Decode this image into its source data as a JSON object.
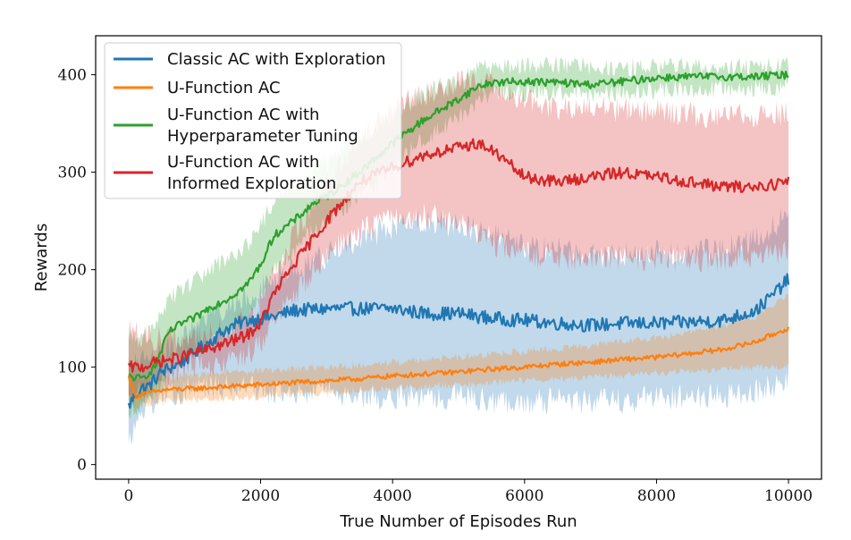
{
  "chart_data": {
    "type": "line",
    "title": "",
    "xlabel": "True Number of Episodes Run",
    "ylabel": "Rewards",
    "xlim": [
      -500,
      10500
    ],
    "ylim": [
      -15,
      440
    ],
    "xticks": [
      0,
      2000,
      4000,
      6000,
      8000,
      10000
    ],
    "yticks": [
      0,
      100,
      200,
      300,
      400
    ],
    "grid": false,
    "legend_position": "top-left",
    "series": [
      {
        "name": "Classic AC with Exploration",
        "color": "#1f77b4",
        "x": [
          0,
          100,
          200,
          300,
          500,
          800,
          1000,
          1200,
          1500,
          1800,
          2000,
          2200,
          2500,
          3000,
          3500,
          4000,
          4500,
          5000,
          5500,
          6000,
          6500,
          7000,
          7500,
          8000,
          8500,
          9000,
          9500,
          9700,
          10000
        ],
        "y": [
          60,
          72,
          78,
          80,
          95,
          105,
          115,
          125,
          140,
          148,
          150,
          152,
          158,
          160,
          160,
          160,
          155,
          155,
          150,
          148,
          145,
          143,
          145,
          145,
          146,
          148,
          158,
          170,
          190
        ],
        "band_lower": [
          20,
          40,
          55,
          60,
          70,
          75,
          80,
          80,
          78,
          78,
          75,
          75,
          75,
          75,
          70,
          70,
          70,
          70,
          65,
          65,
          65,
          65,
          65,
          70,
          70,
          70,
          75,
          80,
          85
        ],
        "band_upper": [
          100,
          105,
          105,
          105,
          115,
          125,
          140,
          150,
          165,
          175,
          180,
          190,
          200,
          215,
          230,
          245,
          250,
          245,
          235,
          225,
          220,
          215,
          215,
          218,
          218,
          220,
          230,
          240,
          260
        ]
      },
      {
        "name": "U-Function AC",
        "color": "#ff7f0e",
        "x": [
          0,
          100,
          200,
          400,
          600,
          1000,
          1500,
          2000,
          2500,
          3000,
          3500,
          4000,
          4500,
          5000,
          5500,
          6000,
          6500,
          7000,
          7500,
          8000,
          8500,
          9000,
          9500,
          10000
        ],
        "y": [
          90,
          70,
          72,
          75,
          77,
          78,
          80,
          82,
          84,
          86,
          88,
          91,
          93,
          95,
          98,
          100,
          103,
          105,
          108,
          110,
          114,
          118,
          126,
          140
        ],
        "band_lower": [
          70,
          55,
          60,
          63,
          65,
          66,
          68,
          70,
          72,
          74,
          76,
          78,
          80,
          82,
          84,
          86,
          88,
          90,
          92,
          94,
          96,
          98,
          100,
          100
        ],
        "band_upper": [
          110,
          90,
          88,
          88,
          90,
          92,
          94,
          96,
          98,
          100,
          102,
          105,
          107,
          110,
          113,
          116,
          119,
          122,
          126,
          130,
          136,
          142,
          152,
          175
        ]
      },
      {
        "name": "U-Function AC with Hyperparameter Tuning",
        "color": "#2ca02c",
        "x": [
          0,
          200,
          400,
          600,
          800,
          1000,
          1200,
          1500,
          1800,
          2000,
          2200,
          2500,
          2800,
          3000,
          3500,
          4000,
          4500,
          5000,
          5300,
          5500,
          6000,
          6500,
          7000,
          7500,
          8000,
          8500,
          9000,
          9500,
          10000
        ],
        "y": [
          90,
          88,
          100,
          135,
          145,
          150,
          160,
          170,
          185,
          205,
          235,
          250,
          268,
          275,
          300,
          330,
          355,
          375,
          388,
          392,
          393,
          392,
          390,
          393,
          397,
          398,
          398,
          398,
          400
        ],
        "band_lower": [
          50,
          60,
          75,
          100,
          110,
          115,
          125,
          135,
          150,
          170,
          200,
          220,
          240,
          250,
          275,
          305,
          335,
          358,
          372,
          380,
          382,
          382,
          380,
          382,
          385,
          385,
          385,
          385,
          390
        ],
        "band_upper": [
          130,
          130,
          140,
          170,
          180,
          190,
          200,
          210,
          225,
          245,
          270,
          285,
          300,
          310,
          335,
          360,
          382,
          395,
          405,
          408,
          410,
          410,
          408,
          408,
          408,
          408,
          408,
          408,
          410
        ]
      },
      {
        "name": "U-Function AC with Informed Exploration",
        "color": "#d62728",
        "x": [
          0,
          200,
          400,
          800,
          1000,
          1200,
          1500,
          1800,
          2000,
          2200,
          2500,
          3000,
          3500,
          4000,
          4500,
          5000,
          5300,
          5600,
          6000,
          6500,
          7000,
          7500,
          8000,
          8500,
          9000,
          9500,
          10000
        ],
        "y": [
          100,
          100,
          105,
          110,
          115,
          118,
          125,
          133,
          145,
          175,
          205,
          250,
          290,
          305,
          318,
          325,
          330,
          318,
          295,
          290,
          295,
          300,
          295,
          290,
          285,
          285,
          290
        ],
        "band_lower": [
          70,
          75,
          85,
          95,
          100,
          103,
          108,
          115,
          125,
          150,
          175,
          215,
          240,
          250,
          255,
          250,
          240,
          225,
          215,
          210,
          210,
          212,
          210,
          210,
          210,
          215,
          220
        ],
        "band_upper": [
          140,
          130,
          130,
          128,
          130,
          133,
          142,
          150,
          165,
          200,
          235,
          285,
          335,
          365,
          380,
          390,
          392,
          385,
          375,
          365,
          365,
          365,
          363,
          360,
          358,
          358,
          360
        ]
      }
    ]
  }
}
